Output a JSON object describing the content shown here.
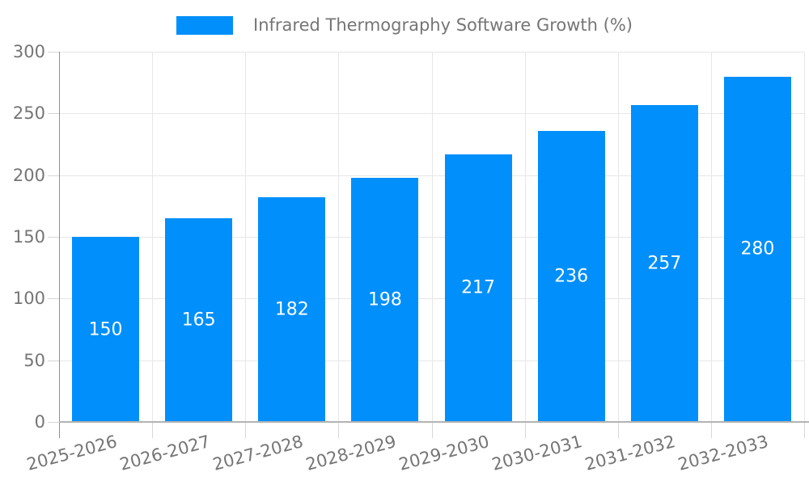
{
  "chart_data": {
    "type": "bar",
    "title": "Infrared Thermography Software Growth (%)",
    "categories": [
      "2025-2026",
      "2026-2027",
      "2027-2028",
      "2028-2029",
      "2029-2030",
      "2030-2031",
      "2031-2032",
      "2032-2033"
    ],
    "values": [
      150,
      165,
      182,
      198,
      217,
      236,
      257,
      280
    ],
    "xlabel": "",
    "ylabel": "",
    "ylim": [
      0,
      300
    ],
    "yticks": [
      0,
      50,
      100,
      150,
      200,
      250,
      300
    ],
    "grid": true,
    "legend_position": "top-center",
    "value_labels": "centered-inside-bars",
    "colors": {
      "bar": "#008FFB",
      "value_text": "#ffffff",
      "axis_text": "#757575",
      "gridline": "#e6e6e6",
      "tick_mark": "#d6d6d6",
      "y_axis_line": "#8f8f8f",
      "zero_line": "#b3b3b3",
      "background": "#ffffff"
    }
  }
}
